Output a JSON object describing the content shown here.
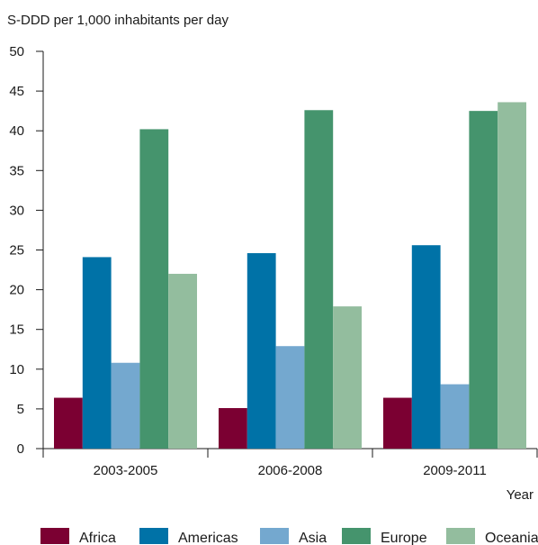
{
  "chart_data": {
    "type": "bar",
    "ylabel": "S-DDD per 1,000 inhabitants per day",
    "xlabel": "Year",
    "ylim": [
      0,
      50
    ],
    "yticks": [
      0,
      5,
      10,
      15,
      20,
      25,
      30,
      35,
      40,
      45,
      50
    ],
    "categories": [
      "2003-2005",
      "2006-2008",
      "2009-2011"
    ],
    "series": [
      {
        "name": "Africa",
        "color": "#7b0032",
        "values": [
          6.4,
          5.1,
          6.4
        ]
      },
      {
        "name": "Americas",
        "color": "#0072a7",
        "values": [
          24.1,
          24.6,
          25.6
        ]
      },
      {
        "name": "Asia",
        "color": "#74a8cf",
        "values": [
          10.8,
          12.9,
          8.1
        ]
      },
      {
        "name": "Europe",
        "color": "#45946d",
        "values": [
          40.2,
          42.6,
          42.5
        ]
      },
      {
        "name": "Oceania",
        "color": "#93bd9e",
        "values": [
          22.0,
          17.9,
          43.6
        ]
      }
    ],
    "legend_position": "bottom",
    "grid": false
  }
}
